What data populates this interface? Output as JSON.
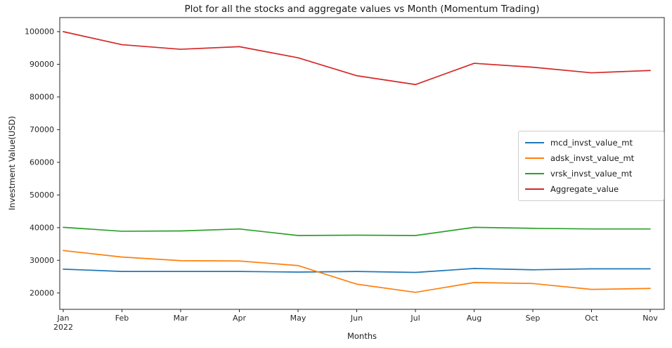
{
  "chart_data": {
    "type": "line",
    "title": "Plot for all the stocks and aggregate values vs Month (Momentum Trading)",
    "xlabel": "Months",
    "ylabel": "Investment Value(USD)",
    "categories": [
      "Jan\n2022",
      "Feb",
      "Mar",
      "Apr",
      "May",
      "Jun",
      "Jul",
      "Aug",
      "Sep",
      "Oct",
      "Nov"
    ],
    "series": [
      {
        "name": "mcd_invst_value_mt",
        "color": "#1f77b4",
        "values": [
          27300,
          26600,
          26600,
          26600,
          26400,
          26600,
          26300,
          27500,
          27100,
          27400,
          27400
        ]
      },
      {
        "name": "adsk_invst_value_mt",
        "color": "#ff7f0e",
        "values": [
          33000,
          31000,
          29900,
          29800,
          28400,
          22700,
          20200,
          23200,
          22900,
          21100,
          21400
        ]
      },
      {
        "name": "vrsk_invst_value_mt",
        "color": "#2ca02c",
        "values": [
          40100,
          38900,
          39000,
          39600,
          37600,
          37700,
          37600,
          40100,
          39800,
          39600,
          39600
        ]
      },
      {
        "name": "Aggregate_value",
        "color": "#d62728",
        "values": [
          100000,
          96000,
          94600,
          95400,
          92000,
          86500,
          83800,
          90300,
          89100,
          87400,
          88100
        ]
      }
    ],
    "yticks": [
      20000,
      30000,
      40000,
      50000,
      60000,
      70000,
      80000,
      90000,
      100000
    ],
    "ylim": [
      15000,
      104300
    ],
    "grid": false,
    "legend_position": "center right",
    "axis_color": "#262626",
    "background_color": "#ffffff"
  }
}
